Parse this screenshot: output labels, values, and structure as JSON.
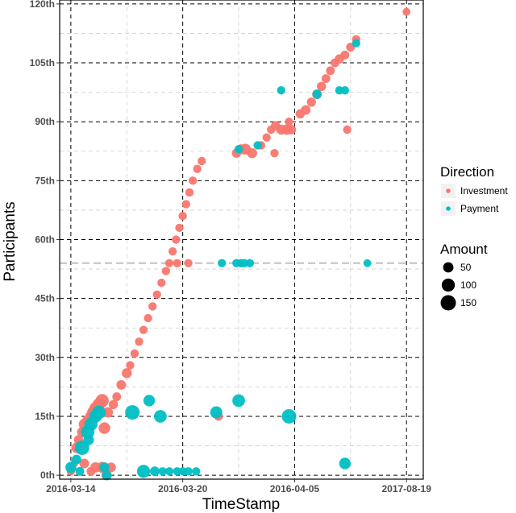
{
  "chart_data": {
    "type": "scatter",
    "xlabel": "TimeStamp",
    "ylabel": "Participants",
    "x_axis_kind": "categorical date ticks (non-linear)",
    "x_ticks": [
      "2016-03-14",
      "2016-03-20",
      "2016-04-05",
      "2017-08-19"
    ],
    "x_tick_index": [
      0,
      1,
      2,
      3
    ],
    "x_range_index": [
      -0.1,
      3.15
    ],
    "y_ticks": [
      0,
      15,
      30,
      45,
      60,
      75,
      90,
      105,
      120
    ],
    "y_tick_labels": [
      "0th",
      "15th",
      "30th",
      "45th",
      "60th",
      "75th",
      "90th",
      "105th",
      "120th"
    ],
    "y_range": [
      -1,
      121
    ],
    "grid": true,
    "reference_line": {
      "y": 54,
      "style": "dashed",
      "color": "#c8c8c8"
    },
    "legend_position": "right",
    "colors": {
      "Investment": "#f8766d",
      "Payment": "#00bfc4"
    },
    "legends": {
      "color_title": "Direction",
      "color_items": [
        "Investment",
        "Payment"
      ],
      "size_title": "Amount",
      "size_items": [
        50,
        100,
        150
      ]
    },
    "series": [
      {
        "name": "Investment",
        "points": [
          [
            0.0,
            1,
            25
          ],
          [
            0.03,
            3,
            20
          ],
          [
            0.05,
            7,
            50
          ],
          [
            0.07,
            9,
            40
          ],
          [
            0.1,
            11,
            45
          ],
          [
            0.12,
            13,
            60
          ],
          [
            0.15,
            14,
            55
          ],
          [
            0.18,
            15,
            70
          ],
          [
            0.2,
            16,
            80
          ],
          [
            0.22,
            17,
            85
          ],
          [
            0.25,
            18,
            90
          ],
          [
            0.28,
            19,
            100
          ],
          [
            0.3,
            12,
            70
          ],
          [
            0.33,
            16,
            50
          ],
          [
            0.38,
            18,
            35
          ],
          [
            0.41,
            20,
            30
          ],
          [
            0.45,
            23,
            40
          ],
          [
            0.5,
            26,
            45
          ],
          [
            0.12,
            3,
            40
          ],
          [
            0.18,
            1,
            30
          ],
          [
            0.22,
            2,
            50
          ],
          [
            0.28,
            2,
            60
          ],
          [
            0.32,
            0,
            50
          ],
          [
            0.36,
            2,
            40
          ],
          [
            0.53,
            28,
            25
          ],
          [
            0.57,
            31,
            25
          ],
          [
            0.61,
            34,
            25
          ],
          [
            0.65,
            37,
            25
          ],
          [
            0.69,
            40,
            25
          ],
          [
            0.73,
            43,
            25
          ],
          [
            0.77,
            46,
            25
          ],
          [
            0.81,
            49,
            25
          ],
          [
            0.85,
            52,
            25
          ],
          [
            0.88,
            54,
            25
          ],
          [
            0.91,
            57,
            25
          ],
          [
            0.94,
            60,
            25
          ],
          [
            0.97,
            63,
            25
          ],
          [
            1.0,
            66,
            25
          ],
          [
            1.03,
            69,
            25
          ],
          [
            1.06,
            72,
            25
          ],
          [
            1.09,
            75,
            25
          ],
          [
            1.13,
            78,
            25
          ],
          [
            1.17,
            80,
            25
          ],
          [
            0.95,
            54,
            25
          ],
          [
            1.05,
            54,
            25
          ],
          [
            1.48,
            82,
            35
          ],
          [
            1.52,
            83,
            45
          ],
          [
            1.56,
            83,
            60
          ],
          [
            1.62,
            82,
            45
          ],
          [
            1.7,
            84,
            25
          ],
          [
            1.75,
            86,
            25
          ],
          [
            1.79,
            88,
            25
          ],
          [
            1.83,
            89,
            35
          ],
          [
            1.88,
            88,
            45
          ],
          [
            1.93,
            88,
            50
          ],
          [
            1.97,
            88,
            40
          ],
          [
            1.95,
            90,
            25
          ],
          [
            2.05,
            92,
            35
          ],
          [
            2.1,
            93,
            40
          ],
          [
            2.15,
            95,
            35
          ],
          [
            2.2,
            97,
            40
          ],
          [
            2.24,
            99,
            35
          ],
          [
            2.28,
            101,
            30
          ],
          [
            2.32,
            103,
            30
          ],
          [
            2.36,
            105,
            30
          ],
          [
            2.4,
            106,
            35
          ],
          [
            2.45,
            107,
            30
          ],
          [
            2.5,
            109,
            30
          ],
          [
            2.55,
            111,
            25
          ],
          [
            2.47,
            88,
            25
          ],
          [
            1.32,
            15,
            30
          ],
          [
            1.82,
            82,
            25
          ],
          [
            3.0,
            118,
            20
          ]
        ]
      },
      {
        "name": "Payment",
        "points": [
          [
            0.0,
            2,
            60
          ],
          [
            0.05,
            4,
            40
          ],
          [
            0.08,
            1,
            30
          ],
          [
            0.1,
            7,
            130
          ],
          [
            0.15,
            11,
            110
          ],
          [
            0.18,
            13,
            100
          ],
          [
            0.22,
            15,
            90
          ],
          [
            0.25,
            16,
            110
          ],
          [
            0.16,
            9,
            50
          ],
          [
            0.3,
            2,
            45
          ],
          [
            0.32,
            0,
            40
          ],
          [
            0.55,
            16,
            130
          ],
          [
            0.65,
            1,
            100
          ],
          [
            0.7,
            19,
            70
          ],
          [
            0.8,
            15,
            90
          ],
          [
            0.75,
            1,
            40
          ],
          [
            0.82,
            1,
            25
          ],
          [
            0.88,
            1,
            25
          ],
          [
            0.95,
            1,
            25
          ],
          [
            1.0,
            1,
            25
          ],
          [
            1.05,
            1,
            25
          ],
          [
            1.12,
            1,
            25
          ],
          [
            1.3,
            16,
            80
          ],
          [
            1.5,
            19,
            90
          ],
          [
            1.95,
            15,
            130
          ],
          [
            2.45,
            3,
            70
          ],
          [
            1.35,
            54,
            25
          ],
          [
            1.48,
            54,
            25
          ],
          [
            1.52,
            54,
            25
          ],
          [
            1.55,
            54,
            25
          ],
          [
            1.6,
            54,
            25
          ],
          [
            2.65,
            54,
            20
          ],
          [
            1.5,
            83,
            25
          ],
          [
            1.67,
            84,
            25
          ],
          [
            1.88,
            98,
            25
          ],
          [
            2.2,
            97,
            35
          ],
          [
            2.4,
            98,
            25
          ],
          [
            2.45,
            98,
            25
          ],
          [
            2.55,
            110,
            25
          ]
        ]
      }
    ]
  }
}
